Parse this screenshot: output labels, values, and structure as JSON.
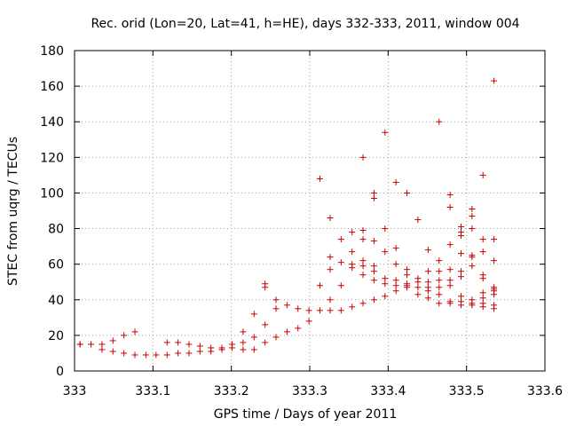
{
  "chart_data": {
    "type": "scatter",
    "title": "Rec. orid (Lon=20, Lat=41, h=HE), days 332-333, 2011, window 004",
    "xlabel": "GPS time / Days of year 2011",
    "ylabel": "STEC from uqrg / TECUs",
    "xlim": [
      333.0,
      333.6
    ],
    "ylim": [
      0,
      180
    ],
    "xticks": [
      "333",
      "333.1",
      "333.2",
      "333.3",
      "333.4",
      "333.5",
      "333.6"
    ],
    "yticks": [
      "0",
      "20",
      "40",
      "60",
      "80",
      "100",
      "120",
      "140",
      "160",
      "180"
    ],
    "grid": true,
    "marker": "+",
    "marker_color": "#cc0000",
    "grid_color": "#a0a0a0",
    "points": [
      [
        333.007,
        15
      ],
      [
        333.007,
        15
      ],
      [
        333.021,
        15
      ],
      [
        333.035,
        15
      ],
      [
        333.035,
        12
      ],
      [
        333.049,
        17
      ],
      [
        333.049,
        11
      ],
      [
        333.063,
        20
      ],
      [
        333.063,
        10
      ],
      [
        333.077,
        22
      ],
      [
        333.077,
        9
      ],
      [
        333.091,
        9
      ],
      [
        333.104,
        9
      ],
      [
        333.118,
        9
      ],
      [
        333.118,
        16
      ],
      [
        333.132,
        10
      ],
      [
        333.132,
        16
      ],
      [
        333.146,
        15
      ],
      [
        333.146,
        10
      ],
      [
        333.16,
        14
      ],
      [
        333.16,
        11
      ],
      [
        333.174,
        11
      ],
      [
        333.174,
        13
      ],
      [
        333.188,
        13
      ],
      [
        333.188,
        12
      ],
      [
        333.201,
        15
      ],
      [
        333.201,
        13
      ],
      [
        333.215,
        22
      ],
      [
        333.215,
        16
      ],
      [
        333.215,
        12
      ],
      [
        333.229,
        32
      ],
      [
        333.229,
        19
      ],
      [
        333.229,
        12
      ],
      [
        333.243,
        49
      ],
      [
        333.243,
        47
      ],
      [
        333.243,
        26
      ],
      [
        333.243,
        16
      ],
      [
        333.257,
        40
      ],
      [
        333.257,
        35
      ],
      [
        333.257,
        19
      ],
      [
        333.271,
        37
      ],
      [
        333.271,
        22
      ],
      [
        333.285,
        35
      ],
      [
        333.285,
        24
      ],
      [
        333.299,
        34
      ],
      [
        333.299,
        28
      ],
      [
        333.313,
        108
      ],
      [
        333.313,
        48
      ],
      [
        333.313,
        34
      ],
      [
        333.326,
        86
      ],
      [
        333.326,
        64
      ],
      [
        333.326,
        57
      ],
      [
        333.326,
        40
      ],
      [
        333.326,
        34
      ],
      [
        333.34,
        74
      ],
      [
        333.34,
        61
      ],
      [
        333.34,
        48
      ],
      [
        333.34,
        34
      ],
      [
        333.354,
        78
      ],
      [
        333.354,
        67
      ],
      [
        333.354,
        60
      ],
      [
        333.354,
        58
      ],
      [
        333.354,
        36
      ],
      [
        333.368,
        120
      ],
      [
        333.368,
        79
      ],
      [
        333.368,
        74
      ],
      [
        333.368,
        62
      ],
      [
        333.368,
        59
      ],
      [
        333.368,
        54
      ],
      [
        333.368,
        38
      ],
      [
        333.382,
        100
      ],
      [
        333.382,
        97
      ],
      [
        333.382,
        73
      ],
      [
        333.382,
        59
      ],
      [
        333.382,
        56
      ],
      [
        333.382,
        51
      ],
      [
        333.382,
        40
      ],
      [
        333.396,
        134
      ],
      [
        333.396,
        80
      ],
      [
        333.396,
        67
      ],
      [
        333.396,
        52
      ],
      [
        333.396,
        49
      ],
      [
        333.396,
        42
      ],
      [
        333.41,
        106
      ],
      [
        333.41,
        69
      ],
      [
        333.41,
        60
      ],
      [
        333.41,
        51
      ],
      [
        333.41,
        48
      ],
      [
        333.41,
        45
      ],
      [
        333.424,
        100
      ],
      [
        333.424,
        57
      ],
      [
        333.424,
        54
      ],
      [
        333.424,
        49
      ],
      [
        333.424,
        48
      ],
      [
        333.424,
        47
      ],
      [
        333.438,
        85
      ],
      [
        333.438,
        52
      ],
      [
        333.438,
        50
      ],
      [
        333.438,
        47
      ],
      [
        333.438,
        43
      ],
      [
        333.451,
        68
      ],
      [
        333.451,
        56
      ],
      [
        333.451,
        50
      ],
      [
        333.451,
        47
      ],
      [
        333.451,
        45
      ],
      [
        333.451,
        41
      ],
      [
        333.465,
        140
      ],
      [
        333.465,
        62
      ],
      [
        333.465,
        56
      ],
      [
        333.465,
        51
      ],
      [
        333.465,
        47
      ],
      [
        333.465,
        43
      ],
      [
        333.465,
        38
      ],
      [
        333.479,
        99
      ],
      [
        333.479,
        92
      ],
      [
        333.479,
        71
      ],
      [
        333.479,
        57
      ],
      [
        333.479,
        51
      ],
      [
        333.479,
        48
      ],
      [
        333.479,
        39
      ],
      [
        333.479,
        38
      ],
      [
        333.493,
        81
      ],
      [
        333.493,
        78
      ],
      [
        333.493,
        76
      ],
      [
        333.493,
        66
      ],
      [
        333.493,
        56
      ],
      [
        333.493,
        53
      ],
      [
        333.493,
        42
      ],
      [
        333.493,
        39
      ],
      [
        333.493,
        37
      ],
      [
        333.507,
        91
      ],
      [
        333.507,
        87
      ],
      [
        333.507,
        80
      ],
      [
        333.507,
        65
      ],
      [
        333.507,
        64
      ],
      [
        333.507,
        59
      ],
      [
        333.507,
        40
      ],
      [
        333.507,
        38
      ],
      [
        333.507,
        37
      ],
      [
        333.521,
        110
      ],
      [
        333.521,
        74
      ],
      [
        333.521,
        67
      ],
      [
        333.521,
        54
      ],
      [
        333.521,
        52
      ],
      [
        333.521,
        44
      ],
      [
        333.521,
        41
      ],
      [
        333.521,
        38
      ],
      [
        333.521,
        36
      ],
      [
        333.535,
        163
      ],
      [
        333.535,
        74
      ],
      [
        333.535,
        62
      ],
      [
        333.535,
        47
      ],
      [
        333.535,
        46
      ],
      [
        333.535,
        45
      ],
      [
        333.535,
        43
      ],
      [
        333.535,
        37
      ],
      [
        333.535,
        35
      ]
    ]
  }
}
